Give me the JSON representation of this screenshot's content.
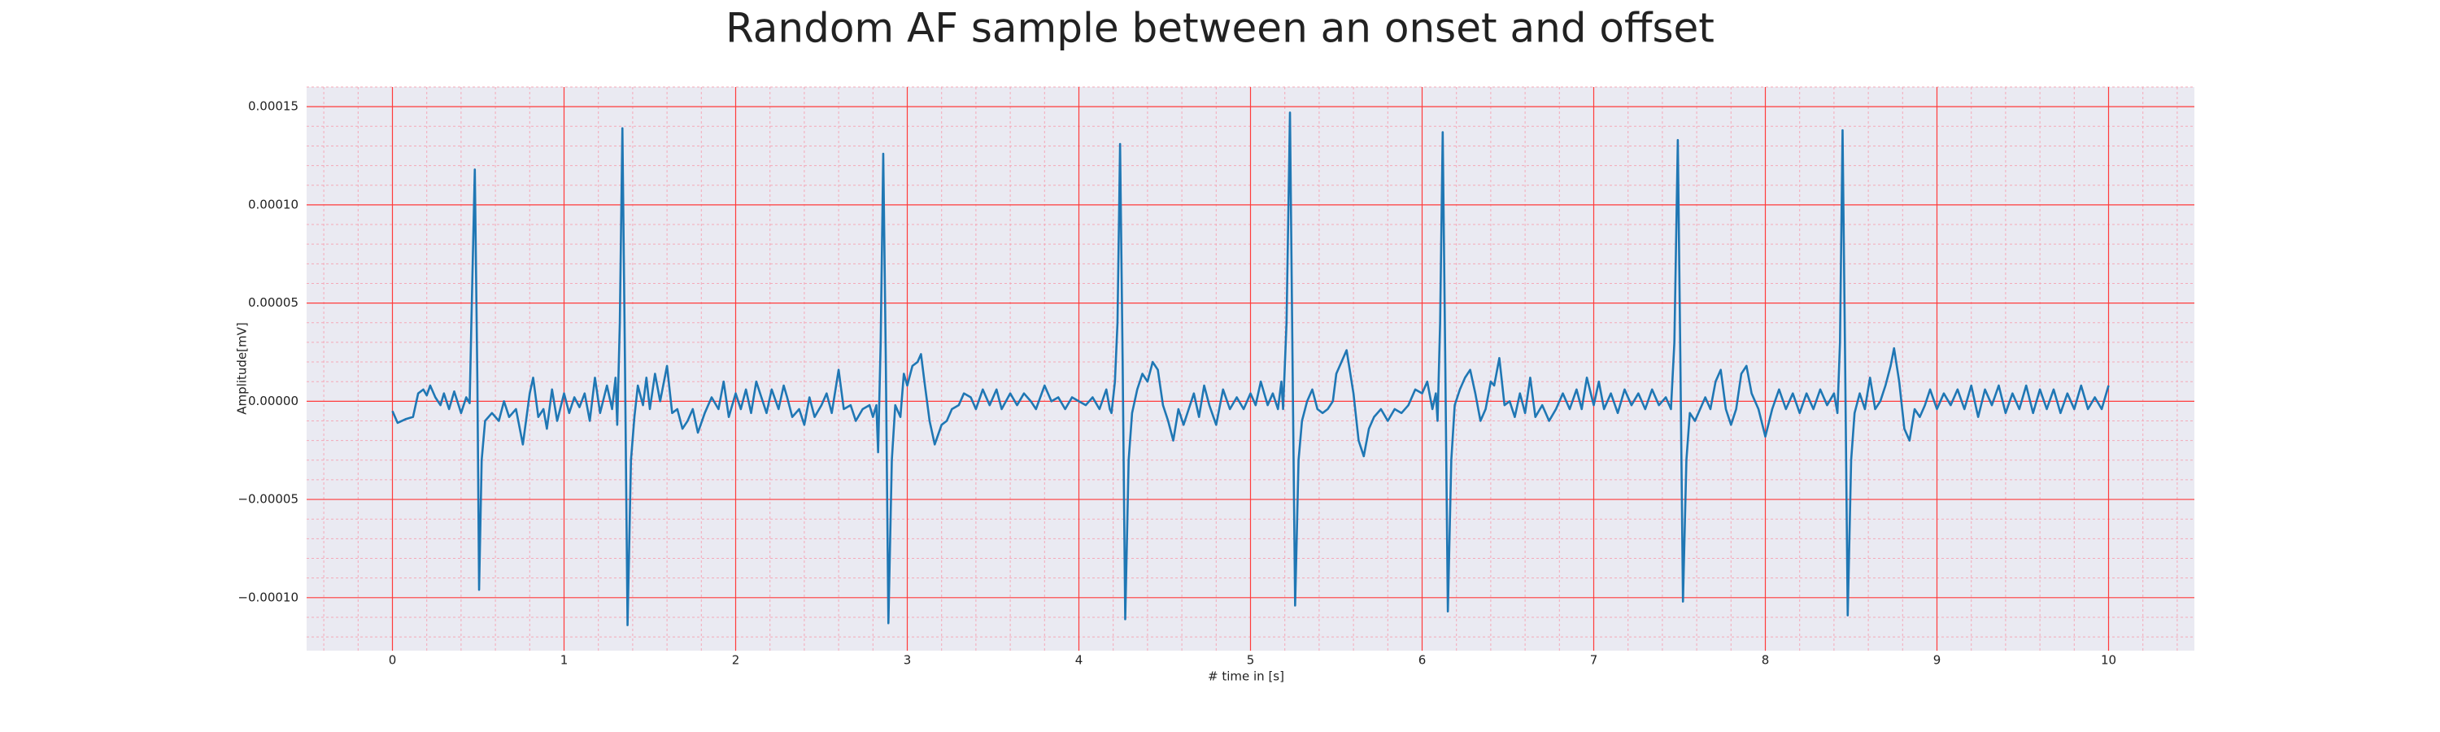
{
  "chart_data": {
    "type": "line",
    "title": "Random AF sample between an onset and offset",
    "xlabel": "# time in [s]",
    "ylabel": "Amplitude[mV]",
    "color": "#1f77b4",
    "background": "#eaeaf2",
    "grid": true,
    "grid_color": "#ff3b3b",
    "minor_grid_color": "#f4a9b8",
    "minor_divisions": 5,
    "xlim": [
      -0.5,
      10.5
    ],
    "ylim": [
      -0.000127,
      0.00016
    ],
    "xticks": [
      0,
      1,
      2,
      3,
      4,
      5,
      6,
      7,
      8,
      9,
      10
    ],
    "yticks": [
      {
        "value": -0.0001,
        "label": "−0.00010"
      },
      {
        "value": -5e-05,
        "label": "−0.00005"
      },
      {
        "value": 0,
        "label": "0.00000"
      },
      {
        "value": 5e-05,
        "label": "0.00005"
      },
      {
        "value": 0.0001,
        "label": "0.00010"
      },
      {
        "value": 0.00015,
        "label": "0.00015"
      }
    ],
    "x": [
      0,
      0.03,
      0.08,
      0.12,
      0.15,
      0.18,
      0.2,
      0.22,
      0.25,
      0.28,
      0.3,
      0.33,
      0.36,
      0.4,
      0.43,
      0.45,
      0.46,
      0.48,
      0.495,
      0.505,
      0.52,
      0.54,
      0.58,
      0.62,
      0.65,
      0.68,
      0.72,
      0.76,
      0.8,
      0.82,
      0.85,
      0.88,
      0.9,
      0.93,
      0.96,
      1.0,
      1.03,
      1.06,
      1.09,
      1.12,
      1.15,
      1.18,
      1.21,
      1.25,
      1.28,
      1.3,
      1.31,
      1.325,
      1.34,
      1.355,
      1.37,
      1.39,
      1.41,
      1.43,
      1.46,
      1.48,
      1.5,
      1.53,
      1.56,
      1.6,
      1.63,
      1.66,
      1.69,
      1.72,
      1.75,
      1.78,
      1.82,
      1.86,
      1.9,
      1.93,
      1.96,
      2.0,
      2.03,
      2.06,
      2.09,
      2.12,
      2.15,
      2.18,
      2.21,
      2.25,
      2.28,
      2.3,
      2.33,
      2.37,
      2.4,
      2.43,
      2.46,
      2.5,
      2.53,
      2.56,
      2.6,
      2.63,
      2.67,
      2.7,
      2.74,
      2.78,
      2.8,
      2.82,
      2.83,
      2.845,
      2.86,
      2.875,
      2.89,
      2.91,
      2.93,
      2.96,
      2.98,
      3.0,
      3.03,
      3.06,
      3.08,
      3.1,
      3.13,
      3.16,
      3.2,
      3.23,
      3.26,
      3.3,
      3.33,
      3.37,
      3.4,
      3.44,
      3.48,
      3.52,
      3.55,
      3.6,
      3.64,
      3.68,
      3.72,
      3.75,
      3.8,
      3.84,
      3.88,
      3.92,
      3.96,
      4.0,
      4.04,
      4.08,
      4.12,
      4.16,
      4.18,
      4.19,
      4.21,
      4.225,
      4.24,
      4.255,
      4.27,
      4.29,
      4.31,
      4.34,
      4.37,
      4.4,
      4.43,
      4.46,
      4.49,
      4.52,
      4.55,
      4.58,
      4.61,
      4.64,
      4.67,
      4.7,
      4.73,
      4.76,
      4.8,
      4.84,
      4.88,
      4.92,
      4.96,
      5.0,
      5.03,
      5.06,
      5.1,
      5.13,
      5.16,
      5.18,
      5.19,
      5.21,
      5.23,
      5.245,
      5.26,
      5.28,
      5.3,
      5.33,
      5.36,
      5.39,
      5.42,
      5.45,
      5.48,
      5.5,
      5.53,
      5.56,
      5.6,
      5.63,
      5.66,
      5.69,
      5.72,
      5.76,
      5.8,
      5.84,
      5.88,
      5.92,
      5.96,
      6.0,
      6.03,
      6.06,
      6.08,
      6.09,
      6.105,
      6.12,
      6.135,
      6.15,
      6.17,
      6.19,
      6.22,
      6.25,
      6.28,
      6.31,
      6.34,
      6.37,
      6.4,
      6.42,
      6.45,
      6.48,
      6.51,
      6.54,
      6.57,
      6.6,
      6.63,
      6.66,
      6.7,
      6.74,
      6.78,
      6.82,
      6.86,
      6.9,
      6.93,
      6.96,
      7.0,
      7.03,
      7.06,
      7.1,
      7.14,
      7.18,
      7.22,
      7.26,
      7.3,
      7.34,
      7.38,
      7.42,
      7.45,
      7.47,
      7.49,
      7.505,
      7.52,
      7.54,
      7.56,
      7.59,
      7.62,
      7.65,
      7.68,
      7.71,
      7.74,
      7.77,
      7.8,
      7.83,
      7.86,
      7.89,
      7.92,
      7.96,
      8.0,
      8.04,
      8.08,
      8.12,
      8.16,
      8.2,
      8.24,
      8.28,
      8.32,
      8.36,
      8.4,
      8.42,
      8.435,
      8.45,
      8.465,
      8.48,
      8.5,
      8.52,
      8.55,
      8.58,
      8.61,
      8.64,
      8.67,
      8.7,
      8.73,
      8.75,
      8.78,
      8.81,
      8.84,
      8.87,
      8.9,
      8.93,
      8.96,
      9.0,
      9.04,
      9.08,
      9.12,
      9.16,
      9.2,
      9.24,
      9.28,
      9.32,
      9.36,
      9.4,
      9.44,
      9.48,
      9.52,
      9.56,
      9.6,
      9.64,
      9.68,
      9.72,
      9.76,
      9.8,
      9.84,
      9.88,
      9.92,
      9.96,
      10.0
    ],
    "values": [
      -5e-06,
      -1.1e-05,
      -9e-06,
      -8e-06,
      4e-06,
      6e-06,
      3e-06,
      8e-06,
      2e-06,
      -2e-06,
      4e-06,
      -4e-06,
      5e-06,
      -6e-06,
      2e-06,
      -1e-06,
      4e-05,
      0.000118,
      1e-05,
      -9.6e-05,
      -3e-05,
      -1e-05,
      -6e-06,
      -1e-05,
      0,
      -8e-06,
      -4e-06,
      -2.2e-05,
      4e-06,
      1.2e-05,
      -8e-06,
      -4e-06,
      -1.4e-05,
      6e-06,
      -1e-05,
      4e-06,
      -6e-06,
      2e-06,
      -3e-06,
      4e-06,
      -1e-05,
      1.2e-05,
      -6e-06,
      8e-06,
      -4e-06,
      1.2e-05,
      -1.2e-05,
      4e-05,
      0.000139,
      2e-05,
      -0.000114,
      -3e-05,
      -8e-06,
      8e-06,
      -2e-06,
      1.2e-05,
      -4e-06,
      1.4e-05,
      0,
      1.8e-05,
      -6e-06,
      -4e-06,
      -1.4e-05,
      -1e-05,
      -4e-06,
      -1.6e-05,
      -6e-06,
      2e-06,
      -4e-06,
      1e-05,
      -8e-06,
      4e-06,
      -4e-06,
      6e-06,
      -6e-06,
      1e-05,
      2e-06,
      -6e-06,
      6e-06,
      -4e-06,
      8e-06,
      2e-06,
      -8e-06,
      -4e-06,
      -1.2e-05,
      2e-06,
      -8e-06,
      -2e-06,
      4e-06,
      -6e-06,
      1.6e-05,
      -4e-06,
      -2e-06,
      -1e-05,
      -4e-06,
      -2e-06,
      -8e-06,
      -2e-06,
      -2.6e-05,
      3e-05,
      0.000126,
      2e-05,
      -0.000113,
      -3e-05,
      -2e-06,
      -8e-06,
      1.4e-05,
      8e-06,
      1.8e-05,
      2e-05,
      2.4e-05,
      1e-05,
      -1e-05,
      -2.2e-05,
      -1.2e-05,
      -1e-05,
      -4e-06,
      -2e-06,
      4e-06,
      2e-06,
      -4e-06,
      6e-06,
      -2e-06,
      6e-06,
      -4e-06,
      4e-06,
      -2e-06,
      4e-06,
      0,
      -4e-06,
      8e-06,
      0,
      2e-06,
      -4e-06,
      2e-06,
      0,
      -2e-06,
      2e-06,
      -4e-06,
      6e-06,
      -4e-06,
      -6e-06,
      1e-05,
      4e-05,
      0.000131,
      2e-05,
      -0.000111,
      -3e-05,
      -6e-06,
      6e-06,
      1.4e-05,
      1e-05,
      2e-05,
      1.6e-05,
      -2e-06,
      -1e-05,
      -2e-05,
      -4e-06,
      -1.2e-05,
      -4e-06,
      4e-06,
      -8e-06,
      8e-06,
      -2e-06,
      -1.2e-05,
      6e-06,
      -4e-06,
      2e-06,
      -4e-06,
      4e-06,
      -2e-06,
      1e-05,
      -2e-06,
      4e-06,
      -4e-06,
      1e-05,
      -4e-06,
      4e-05,
      0.000147,
      2e-05,
      -0.000104,
      -3e-05,
      -1e-05,
      0,
      6e-06,
      -4e-06,
      -6e-06,
      -4e-06,
      0,
      1.4e-05,
      2e-05,
      2.6e-05,
      4e-06,
      -2e-05,
      -2.8e-05,
      -1.4e-05,
      -8e-06,
      -4e-06,
      -1e-05,
      -4e-06,
      -6e-06,
      -2e-06,
      6e-06,
      4e-06,
      1e-05,
      -4e-06,
      4e-06,
      -1e-05,
      4e-05,
      0.000137,
      2e-05,
      -0.000107,
      -3e-05,
      -2e-06,
      6e-06,
      1.2e-05,
      1.6e-05,
      4e-06,
      -1e-05,
      -4e-06,
      1e-05,
      8e-06,
      2.2e-05,
      -2e-06,
      0,
      -8e-06,
      4e-06,
      -6e-06,
      1.2e-05,
      -8e-06,
      -2e-06,
      -1e-05,
      -4e-06,
      4e-06,
      -4e-06,
      6e-06,
      -4e-06,
      1.2e-05,
      -2e-06,
      1e-05,
      -4e-06,
      4e-06,
      -6e-06,
      6e-06,
      -2e-06,
      4e-06,
      -4e-06,
      6e-06,
      -2e-06,
      2e-06,
      -4e-06,
      3e-05,
      0.000133,
      2e-05,
      -0.000102,
      -3e-05,
      -6e-06,
      -1e-05,
      -4e-06,
      2e-06,
      -4e-06,
      1e-05,
      1.6e-05,
      -4e-06,
      -1.2e-05,
      -4e-06,
      1.4e-05,
      1.8e-05,
      4e-06,
      -4e-06,
      -1.8e-05,
      -4e-06,
      6e-06,
      -4e-06,
      4e-06,
      -6e-06,
      4e-06,
      -4e-06,
      6e-06,
      -2e-06,
      4e-06,
      -6e-06,
      3e-05,
      0.000138,
      2e-05,
      -0.000109,
      -3e-05,
      -6e-06,
      4e-06,
      -4e-06,
      1.2e-05,
      -4e-06,
      0,
      8e-06,
      1.8e-05,
      2.7e-05,
      1e-05,
      -1.4e-05,
      -2e-05,
      -4e-06,
      -8e-06,
      -2e-06,
      6e-06,
      -4e-06,
      4e-06,
      -2e-06,
      6e-06,
      -4e-06,
      8e-06,
      -8e-06,
      6e-06,
      -2e-06,
      8e-06,
      -6e-06,
      4e-06,
      -4e-06,
      8e-06,
      -6e-06,
      6e-06,
      -4e-06,
      6e-06,
      -6e-06,
      4e-06,
      -4e-06,
      8e-06,
      -4e-06,
      2e-06,
      -4e-06,
      8e-06
    ]
  }
}
